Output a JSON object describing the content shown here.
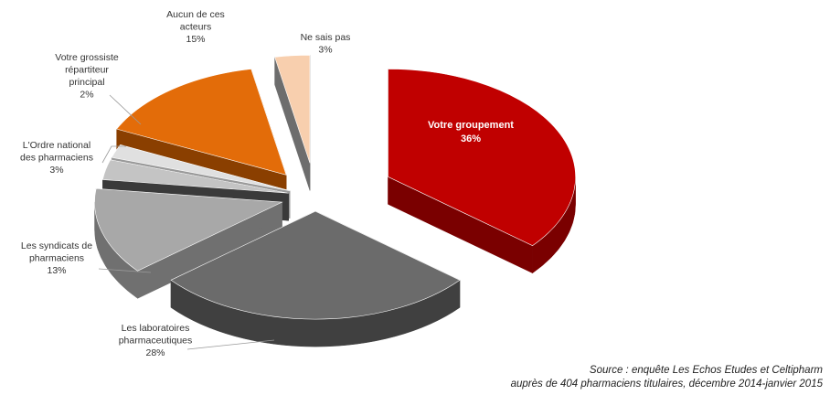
{
  "chart_data": {
    "type": "pie",
    "style": "3d-exploded",
    "slices": [
      {
        "label": [
          "Votre groupement",
          "36%"
        ],
        "value": 36,
        "color": "#c00000",
        "side": "#7a0000",
        "text": "inside"
      },
      {
        "label": [
          "Les laboratoires",
          "pharmaceutiques",
          "28%"
        ],
        "value": 28,
        "color": "#6b6b6b",
        "side": "#404040"
      },
      {
        "label": [
          "Les syndicats de",
          "pharmaciens",
          "13%"
        ],
        "value": 13,
        "color": "#a8a8a8",
        "side": "#707070"
      },
      {
        "label": [
          "L'Ordre national",
          "des pharmaciens",
          "3%"
        ],
        "value": 3,
        "color": "#c4c4c4",
        "side": "#3a3a3a"
      },
      {
        "label": [
          "Votre grossiste",
          "répartiteur",
          "principal",
          "2%"
        ],
        "value": 2,
        "color": "#e0e0e0",
        "side": "#9a9a9a"
      },
      {
        "label": [
          "Aucun de ces",
          "acteurs",
          "15%"
        ],
        "value": 15,
        "color": "#e36c09",
        "side": "#8a3f00"
      },
      {
        "label": [
          "Ne sais pas",
          "3%"
        ],
        "value": 3,
        "color": "#f8cfae",
        "side": "#6d6d6d"
      }
    ]
  },
  "source": {
    "line1": "Source : enquête Les Echos Etudes et Celtipharm",
    "line2": "auprès de 404 pharmaciens titulaires, décembre 2014-janvier 2015"
  }
}
